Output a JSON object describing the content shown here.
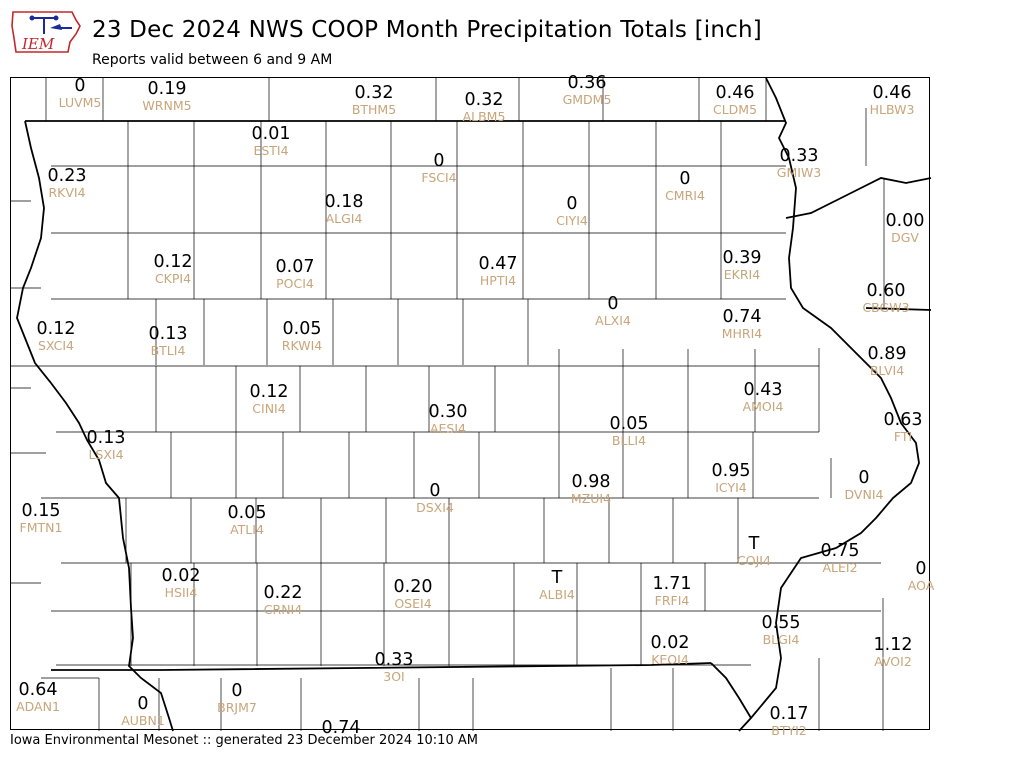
{
  "logo": {
    "text": "IEM"
  },
  "header": {
    "title": "23 Dec 2024 NWS COOP Month Precipitation Totals [inch]",
    "subtitle": "Reports valid between 6 and 9 AM"
  },
  "footer": {
    "text": "Iowa Environmental Mesonet :: generated 23 December 2024 10:10 AM"
  },
  "colors": {
    "value": "#000000",
    "station_id": "#c8a57a",
    "county_line": "#000000"
  },
  "stations": [
    {
      "value": "0",
      "id": "LUVM5"
    },
    {
      "value": "0.19",
      "id": "WRNM5"
    },
    {
      "value": "0.32",
      "id": "BTHM5"
    },
    {
      "value": "0.32",
      "id": "ALBM5"
    },
    {
      "value": "0.36",
      "id": "GMDM5"
    },
    {
      "value": "0.46",
      "id": "CLDM5"
    },
    {
      "value": "0.46",
      "id": "HLBW3"
    },
    {
      "value": "0.01",
      "id": "ESTI4"
    },
    {
      "value": "0",
      "id": "FSCI4"
    },
    {
      "value": "0.23",
      "id": "RKVI4"
    },
    {
      "value": "0.33",
      "id": "GMIW3"
    },
    {
      "value": "0",
      "id": "CMRI4"
    },
    {
      "value": "0.18",
      "id": "ALGI4"
    },
    {
      "value": "0",
      "id": "CIYI4"
    },
    {
      "value": "0.00",
      "id": "DGV"
    },
    {
      "value": "0.12",
      "id": "CKPI4"
    },
    {
      "value": "0.07",
      "id": "POCI4"
    },
    {
      "value": "0.47",
      "id": "HPTI4"
    },
    {
      "value": "0.39",
      "id": "EKRI4"
    },
    {
      "value": "0.60",
      "id": "CBGW3"
    },
    {
      "value": "0",
      "id": "ALXI4"
    },
    {
      "value": "0.12",
      "id": "SXCI4"
    },
    {
      "value": "0.13",
      "id": "BTLI4"
    },
    {
      "value": "0.05",
      "id": "RKWI4"
    },
    {
      "value": "0.74",
      "id": "MHRI4"
    },
    {
      "value": "0.89",
      "id": "BLVI4"
    },
    {
      "value": "0.12",
      "id": "CINI4"
    },
    {
      "value": "0.43",
      "id": "AMOI4"
    },
    {
      "value": "0.30",
      "id": "AESI4"
    },
    {
      "value": "0.63",
      "id": "FTI"
    },
    {
      "value": "0.13",
      "id": "LSXI4"
    },
    {
      "value": "0.05",
      "id": "BLLI4"
    },
    {
      "value": "0.95",
      "id": "ICYI4"
    },
    {
      "value": "0",
      "id": "DVNI4"
    },
    {
      "value": "0.98",
      "id": "MZUI4"
    },
    {
      "value": "0",
      "id": "DSXI4"
    },
    {
      "value": "0.15",
      "id": "FMTN1"
    },
    {
      "value": "0.05",
      "id": "ATLI4"
    },
    {
      "value": "T",
      "id": "COJI4"
    },
    {
      "value": "0.75",
      "id": "ALEI2"
    },
    {
      "value": "0",
      "id": "AOA"
    },
    {
      "value": "0.02",
      "id": "HSII4"
    },
    {
      "value": "T",
      "id": "ALBI4"
    },
    {
      "value": "1.71",
      "id": "FRFI4"
    },
    {
      "value": "0.22",
      "id": "CRNI4"
    },
    {
      "value": "0.20",
      "id": "OSEI4"
    },
    {
      "value": "0.55",
      "id": "BLGI4"
    },
    {
      "value": "0.02",
      "id": "KEOI4"
    },
    {
      "value": "1.12",
      "id": "AVOI2"
    },
    {
      "value": "0.33",
      "id": "3OI"
    },
    {
      "value": "0.64",
      "id": "ADAN1"
    },
    {
      "value": "0",
      "id": "AUBN1"
    },
    {
      "value": "0",
      "id": "BRJM7"
    },
    {
      "value": "0.74",
      "id": ""
    },
    {
      "value": "0.17",
      "id": "BTYI2"
    }
  ]
}
